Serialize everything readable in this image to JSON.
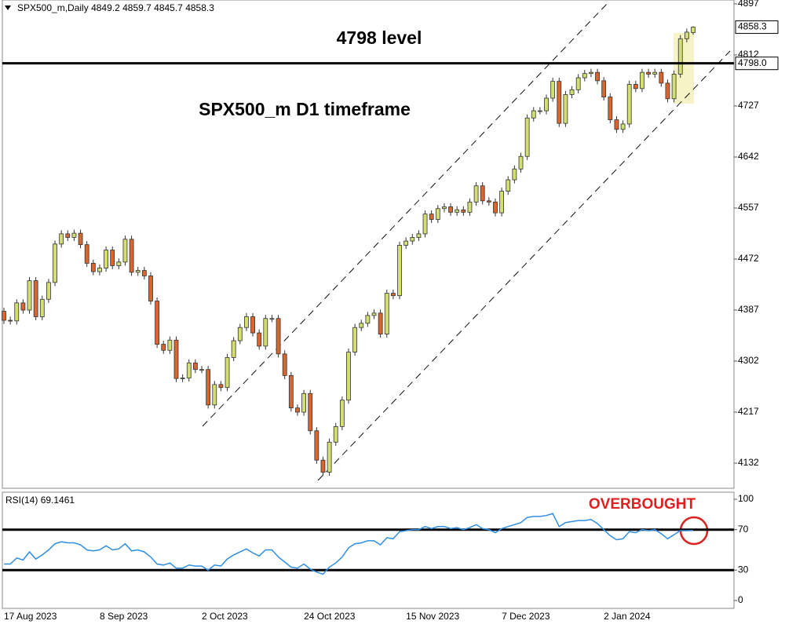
{
  "chart_data": [
    {
      "type": "candlestick",
      "symbol": "SPX500_m,Daily",
      "annotations": [
        "4798 level",
        "SPX500_m D1 timeframe"
      ],
      "categories": [
        "17 Aug 2023",
        null,
        null,
        null,
        null,
        null,
        null,
        null,
        null,
        null,
        null,
        null,
        null,
        null,
        null,
        "8 Sep 2023",
        null,
        null,
        null,
        null,
        null,
        null,
        null,
        null,
        null,
        null,
        null,
        null,
        null,
        null,
        null,
        "2 Oct 2023",
        null,
        null,
        null,
        null,
        null,
        null,
        null,
        null,
        null,
        null,
        null,
        null,
        null,
        null,
        null,
        "24 Oct 2023",
        null,
        null,
        null,
        null,
        null,
        null,
        null,
        null,
        null,
        null,
        null,
        null,
        null,
        null,
        null,
        "15 Nov 2023",
        null,
        null,
        null,
        null,
        null,
        null,
        null,
        null,
        null,
        null,
        null,
        null,
        null,
        null,
        "7 Dec 2023",
        null,
        null,
        null,
        null,
        null,
        null,
        null,
        null,
        null,
        null,
        null,
        null,
        null,
        null,
        null,
        "2 Jan 2024",
        null,
        null,
        null,
        null,
        null,
        null,
        null,
        null,
        null,
        null,
        null,
        null,
        null,
        null
      ],
      "series": [
        {
          "up_color": "#d3df70",
          "down_color": "#d9652f",
          "open": [
            4385,
            4370,
            4369,
            4399,
            4387,
            4436,
            4376,
            4405,
            4433,
            4497,
            4514,
            4508,
            4515,
            4496,
            4465,
            4451,
            4457,
            4487,
            4461,
            4467,
            4505,
            4450,
            4453,
            4444,
            4402,
            4330,
            4320,
            4337,
            4273,
            4274,
            4299,
            4288,
            4288,
            4229,
            4263,
            4258,
            4308,
            4336,
            4358,
            4376,
            4349,
            4327,
            4373,
            4373,
            4314,
            4278,
            4224,
            4217,
            4248,
            4186,
            4137,
            4117,
            4167,
            4193,
            4237,
            4317,
            4358,
            4365,
            4378,
            4382,
            4347,
            4415,
            4411,
            4495,
            4502,
            4508,
            4514,
            4547,
            4538,
            4556,
            4559,
            4550,
            4554,
            4550,
            4567,
            4594,
            4569,
            4567,
            4549,
            4585,
            4604,
            4622,
            4643,
            4707,
            4719,
            4719,
            4740,
            4768,
            4698,
            4746,
            4754,
            4774,
            4781,
            4783,
            4769,
            4742,
            4704,
            4688,
            4697,
            4763,
            4756,
            4783,
            4780,
            4783,
            4765,
            4739,
            4780,
            4839,
            4849.2
          ],
          "high": [
            4391,
            4376,
            4405,
            4405,
            4442,
            4442,
            4411,
            4439,
            4503,
            4520,
            4520,
            4521,
            4521,
            4502,
            4471,
            4463,
            4493,
            4493,
            4473,
            4511,
            4511,
            4459,
            4459,
            4450,
            4408,
            4336,
            4343,
            4343,
            4280,
            4305,
            4305,
            4294,
            4294,
            4269,
            4269,
            4314,
            4342,
            4364,
            4382,
            4382,
            4355,
            4379,
            4379,
            4379,
            4320,
            4284,
            4230,
            4254,
            4254,
            4192,
            4143,
            4173,
            4199,
            4243,
            4323,
            4364,
            4371,
            4384,
            4388,
            4388,
            4421,
            4421,
            4501,
            4508,
            4514,
            4520,
            4553,
            4553,
            4562,
            4565,
            4565,
            4560,
            4560,
            4573,
            4600,
            4600,
            4575,
            4573,
            4591,
            4610,
            4628,
            4649,
            4713,
            4725,
            4725,
            4746,
            4774,
            4774,
            4752,
            4760,
            4780,
            4787,
            4789,
            4789,
            4775,
            4748,
            4710,
            4703,
            4769,
            4769,
            4789,
            4789,
            4789,
            4789,
            4771,
            4786,
            4845,
            4856,
            4859.7
          ],
          "low": [
            4364,
            4363,
            4363,
            4381,
            4381,
            4370,
            4370,
            4399,
            4427,
            4491,
            4502,
            4502,
            4490,
            4459,
            4445,
            4445,
            4451,
            4455,
            4455,
            4461,
            4444,
            4444,
            4438,
            4396,
            4324,
            4314,
            4314,
            4267,
            4267,
            4268,
            4282,
            4282,
            4223,
            4223,
            4252,
            4252,
            4302,
            4330,
            4352,
            4343,
            4321,
            4321,
            4367,
            4308,
            4272,
            4218,
            4211,
            4211,
            4180,
            4131,
            4111,
            4111,
            4161,
            4187,
            4231,
            4311,
            4352,
            4359,
            4372,
            4341,
            4341,
            4405,
            4405,
            4489,
            4496,
            4502,
            4508,
            4532,
            4532,
            4550,
            4544,
            4544,
            4544,
            4544,
            4561,
            4563,
            4561,
            4543,
            4543,
            4579,
            4598,
            4616,
            4637,
            4701,
            4713,
            4713,
            4734,
            4692,
            4692,
            4740,
            4748,
            4768,
            4775,
            4763,
            4736,
            4698,
            4682,
            4682,
            4691,
            4750,
            4750,
            4774,
            4774,
            4759,
            4733,
            4733,
            4774,
            4833,
            4845.7
          ],
          "close": [
            4370,
            4369,
            4399,
            4387,
            4436,
            4376,
            4405,
            4433,
            4497,
            4514,
            4508,
            4515,
            4496,
            4465,
            4451,
            4457,
            4487,
            4461,
            4467,
            4505,
            4450,
            4453,
            4444,
            4402,
            4330,
            4320,
            4337,
            4273,
            4274,
            4299,
            4288,
            4288,
            4229,
            4263,
            4258,
            4308,
            4336,
            4358,
            4376,
            4349,
            4327,
            4373,
            4373,
            4314,
            4278,
            4224,
            4217,
            4248,
            4186,
            4137,
            4117,
            4167,
            4193,
            4237,
            4317,
            4358,
            4365,
            4378,
            4382,
            4347,
            4415,
            4411,
            4495,
            4502,
            4508,
            4514,
            4547,
            4538,
            4556,
            4559,
            4550,
            4554,
            4550,
            4567,
            4594,
            4569,
            4567,
            4549,
            4585,
            4604,
            4622,
            4643,
            4707,
            4719,
            4719,
            4740,
            4768,
            4698,
            4746,
            4754,
            4774,
            4781,
            4783,
            4769,
            4742,
            4704,
            4688,
            4697,
            4763,
            4756,
            4783,
            4780,
            4783,
            4765,
            4739,
            4780,
            4839,
            4850,
            4858.3
          ]
        }
      ],
      "ylim": [
        4090.2,
        4903.5
      ],
      "yticks": [
        4897,
        4812,
        4727,
        4642,
        4557,
        4472,
        4387,
        4302,
        4217,
        4132
      ],
      "levels": [
        {
          "value": 4798,
          "label": "4798.0"
        }
      ]
    },
    {
      "type": "line",
      "annotations": [
        "OVERBOUGHT"
      ],
      "series": [
        {
          "name": "RSI(14)",
          "color": "#2f8fe3",
          "values": [
            36,
            36,
            42,
            40,
            48,
            41,
            45,
            50,
            56,
            58,
            57,
            57,
            55,
            50,
            49,
            50,
            54,
            50,
            51,
            56,
            49,
            50,
            48,
            43,
            36,
            35,
            37,
            32,
            32,
            35,
            34,
            34,
            30,
            35,
            34,
            41,
            45,
            48,
            51,
            47,
            44,
            50,
            50,
            43,
            38,
            33,
            32,
            36,
            31,
            28,
            26,
            33,
            37,
            43,
            52,
            56,
            57,
            59,
            59,
            55,
            62,
            61,
            68,
            69,
            70,
            70,
            73,
            71,
            73,
            73,
            71,
            72,
            70,
            72,
            75,
            71,
            70,
            67,
            71,
            73,
            75,
            77,
            82,
            83,
            83,
            84,
            86,
            73,
            77,
            78,
            79,
            79,
            80,
            76,
            70,
            64,
            60,
            61,
            68,
            67,
            70,
            69,
            70,
            66,
            61,
            65,
            69,
            69,
            69.1461
          ]
        }
      ],
      "ylim": [
        -7.8,
        107
      ],
      "yticks": [
        100,
        70,
        30,
        0
      ],
      "levels": [
        70,
        30
      ]
    }
  ]
}
